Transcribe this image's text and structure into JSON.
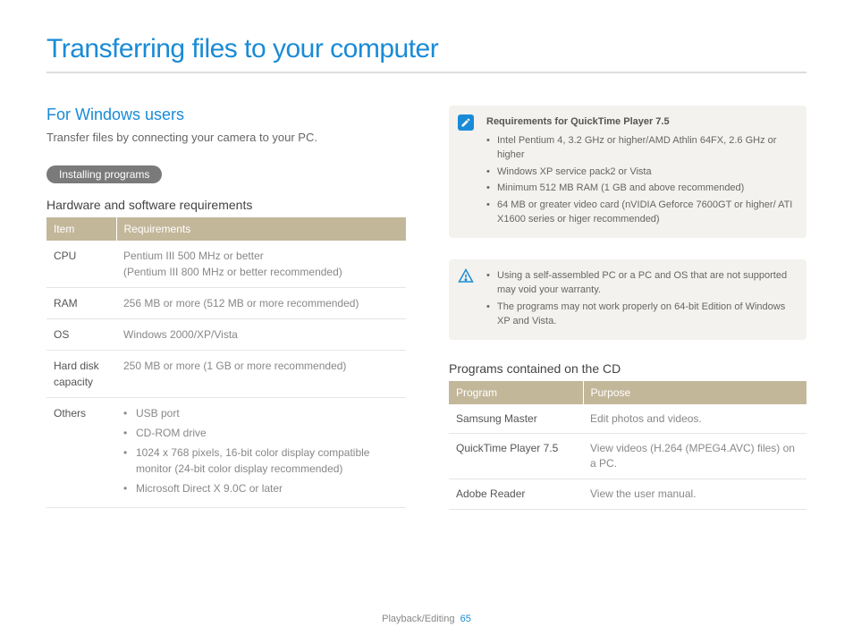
{
  "page": {
    "title": "Transferring files to your computer",
    "footer_section": "Playback/Editing",
    "page_number": "65"
  },
  "colors": {
    "accent": "#1a8bd6",
    "table_header_bg": "#c3b79a",
    "note_bg": "#f3f2ee",
    "body_text": "#666666",
    "muted_text": "#888888",
    "rule": "#dddddd"
  },
  "left": {
    "heading": "For Windows users",
    "intro": "Transfer files by connecting your camera to your PC.",
    "pill": "Installing programs",
    "req_heading": "Hardware and software requirements",
    "req_table": {
      "headers": [
        "Item",
        "Requirements"
      ],
      "col_widths": [
        "78px",
        "auto"
      ],
      "rows": [
        {
          "item": "CPU",
          "req": "Pentium III 500 MHz or better\n(Pentium III 800 MHz or better recommended)"
        },
        {
          "item": "RAM",
          "req": "256 MB or more (512 MB or more recommended)"
        },
        {
          "item": "OS",
          "req": "Windows 2000/XP/Vista"
        },
        {
          "item": "Hard disk capacity",
          "req": "250 MB or more (1 GB or more recommended)"
        },
        {
          "item": "Others",
          "req_list": [
            "USB port",
            "CD-ROM drive",
            "1024 x 768 pixels, 16-bit color display compatible monitor (24-bit color display recommended)",
            "Microsoft Direct X 9.0C or later"
          ]
        }
      ]
    }
  },
  "right": {
    "note1": {
      "icon": "pencil-icon",
      "title": "Requirements for QuickTime Player 7.5",
      "items": [
        "Intel Pentium 4, 3.2 GHz or higher/AMD Athlin 64FX, 2.6 GHz or higher",
        "Windows XP service pack2 or Vista",
        "Minimum 512 MB RAM (1 GB and above recommended)",
        "64 MB or greater video card (nVIDIA Geforce 7600GT or higher/ ATI X1600 series or higer recommended)"
      ]
    },
    "note2": {
      "icon": "warning-icon",
      "items": [
        "Using a self-assembled PC or a PC and OS that are not supported may void your warranty.",
        "The programs may not work properly on 64-bit Edition of Windows XP and Vista."
      ]
    },
    "prog_heading": "Programs contained on the CD",
    "prog_table": {
      "headers": [
        "Program",
        "Purpose"
      ],
      "col_widths": [
        "150px",
        "auto"
      ],
      "rows": [
        {
          "program": "Samsung Master",
          "purpose": "Edit photos and videos."
        },
        {
          "program": "QuickTime Player 7.5",
          "purpose": "View videos (H.264 (MPEG4.AVC) files) on a PC."
        },
        {
          "program": "Adobe Reader",
          "purpose": "View the user manual."
        }
      ]
    }
  }
}
